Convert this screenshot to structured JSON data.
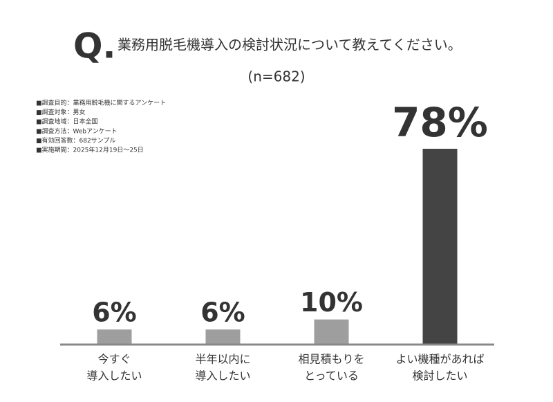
{
  "chart_data": {
    "type": "bar",
    "title_mark": "Q.",
    "title": "業務用脱毛機導入の検討状況について教えてください。",
    "subtitle": "(n=682)",
    "notes": [
      "■調査目的：業務用脱毛機に関するアンケート",
      "■調査対象：男女",
      "■調査地域：日本全国",
      "■調査方法：Webアンケート",
      "■有効回答数：682サンプル",
      "■実施期間：2025年12月19日～25日"
    ],
    "categories": [
      [
        "今すぐ",
        "導入したい"
      ],
      [
        "半年以内に",
        "導入したい"
      ],
      [
        "相見積もりを",
        "とっている"
      ],
      [
        "よい機種があれば",
        "検討したい"
      ]
    ],
    "values": [
      6,
      6,
      10,
      78
    ],
    "value_labels": [
      "6%",
      "6%",
      "10%",
      "78%"
    ],
    "colors": [
      "#9e9e9e",
      "#9e9e9e",
      "#9e9e9e",
      "#444444"
    ],
    "ylim": [
      0,
      78
    ]
  }
}
